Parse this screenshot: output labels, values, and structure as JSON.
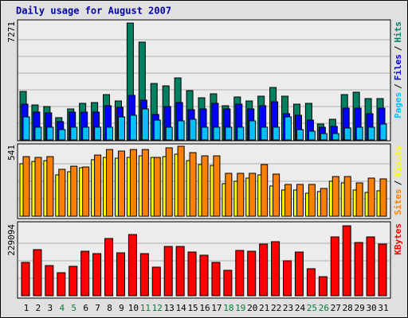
{
  "title": "Daily usage for August 2007",
  "legend_separator": "/",
  "chart_data": [
    {
      "type": "bar",
      "ylim": [
        0,
        7271
      ],
      "yticks": [
        7271
      ],
      "series": [
        {
          "name": "Hits",
          "color": "#008060",
          "values": [
            3017,
            2176,
            2077,
            1385,
            1929,
            2275,
            2325,
            2819,
            2424,
            7271,
            6084,
            3512,
            3363,
            3858,
            3067,
            2621,
            2869,
            2127,
            2671,
            2424,
            2720,
            3264,
            2720,
            2226,
            2275,
            989,
            1286,
            2819,
            2968,
            2572,
            2572
          ]
        },
        {
          "name": "Files",
          "color": "#0000ff",
          "values": [
            2226,
            1731,
            1682,
            1138,
            1731,
            1731,
            1731,
            2127,
            2028,
            2770,
            2473,
            1583,
            2077,
            2325,
            1879,
            1929,
            2275,
            1929,
            2226,
            1929,
            2127,
            2374,
            1632,
            1533,
            1237,
            791,
            841,
            1978,
            1978,
            1632,
            1978
          ]
        },
        {
          "name": "Pages",
          "color": "#00c0ff",
          "values": [
            1434,
            791,
            791,
            643,
            791,
            791,
            791,
            791,
            1434,
            1533,
            1929,
            1237,
            791,
            1187,
            1286,
            791,
            791,
            791,
            791,
            1187,
            791,
            791,
            1434,
            643,
            544,
            396,
            396,
            742,
            791,
            791,
            989
          ]
        }
      ]
    },
    {
      "type": "bar",
      "ylim": [
        0,
        541
      ],
      "yticks": [
        541
      ],
      "series": [
        {
          "name": "Visits",
          "color": "#ffff00",
          "values": [
            406,
            424,
            430,
            320,
            344,
            375,
            437,
            455,
            449,
            455,
            467,
            455,
            461,
            480,
            430,
            400,
            393,
            252,
            271,
            295,
            320,
            234,
            203,
            203,
            178,
            191,
            271,
            258,
            203,
            184,
            197
          ]
        },
        {
          "name": "Sites",
          "color": "#ff8000",
          "values": [
            461,
            455,
            461,
            363,
            387,
            381,
            473,
            516,
            504,
            516,
            516,
            455,
            529,
            541,
            492,
            467,
            467,
            332,
            332,
            332,
            400,
            326,
            246,
            246,
            246,
            215,
            307,
            307,
            258,
            295,
            289
          ]
        }
      ]
    },
    {
      "type": "bar",
      "ylim": [
        0,
        229094
      ],
      "yticks": [
        229094
      ],
      "categories": [
        "1",
        "2",
        "3",
        "4",
        "5",
        "6",
        "7",
        "8",
        "9",
        "10",
        "11",
        "12",
        "13",
        "14",
        "15",
        "16",
        "17",
        "18",
        "19",
        "20",
        "21",
        "22",
        "23",
        "24",
        "25",
        "26",
        "27",
        "28",
        "29",
        "30",
        "31"
      ],
      "category_colors": [
        "#000000",
        "#000000",
        "#000000",
        "#008040",
        "#008040",
        "#000000",
        "#000000",
        "#000000",
        "#000000",
        "#000000",
        "#008040",
        "#008040",
        "#000000",
        "#000000",
        "#000000",
        "#000000",
        "#000000",
        "#008040",
        "#008040",
        "#000000",
        "#000000",
        "#000000",
        "#000000",
        "#000000",
        "#008040",
        "#008040",
        "#000000",
        "#000000",
        "#000000",
        "#000000",
        "#000000"
      ],
      "series": [
        {
          "name": "KBytes",
          "color": "#ff0000",
          "values": [
            109330,
            150980,
            98920,
            75490,
            96320,
            145780,
            137970,
            187430,
            140570,
            200450,
            137970,
            93720,
            161400,
            161400,
            143180,
            132770,
            109330,
            83300,
            148390,
            145780,
            169210,
            177020,
            114550,
            143180,
            88510,
            62480,
            192640,
            229094,
            174420,
            192640,
            169210
          ]
        }
      ]
    }
  ]
}
